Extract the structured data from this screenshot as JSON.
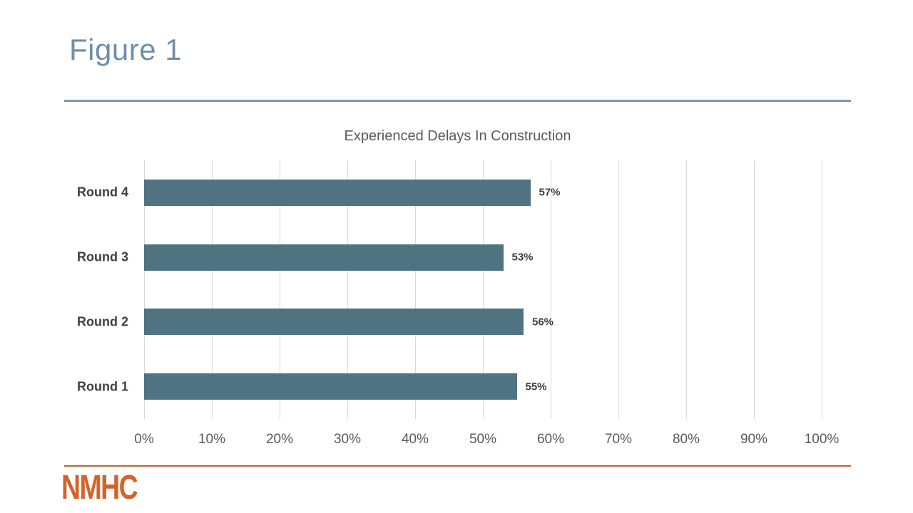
{
  "figure": {
    "label": "Figure 1"
  },
  "logo": {
    "text": "NMHC"
  },
  "colors": {
    "figure_label": "#6F8FA9",
    "divider": "#7C98AB",
    "bar": "#507382",
    "gridline": "#D9D9D9",
    "chart_title": "#595959",
    "axis_label": "#595959",
    "data_label": "#3F3F3F",
    "category_label": "#3F3F3F",
    "footer_rule": "#C0622F",
    "logo": "#D4632A"
  },
  "chart_data": {
    "type": "bar",
    "orientation": "horizontal",
    "title": "Experienced Delays In Construction",
    "categories": [
      "Round 4",
      "Round 3",
      "Round 2",
      "Round 1"
    ],
    "values": [
      57,
      53,
      56,
      55
    ],
    "value_labels": [
      "57%",
      "53%",
      "56%",
      "55%"
    ],
    "xlabel": "",
    "ylabel": "",
    "xlim": [
      0,
      100
    ],
    "x_tick_step": 10,
    "x_ticks": [
      "0%",
      "10%",
      "20%",
      "30%",
      "40%",
      "50%",
      "60%",
      "70%",
      "80%",
      "90%",
      "100%"
    ],
    "grid": "vertical-only",
    "legend": "none"
  }
}
